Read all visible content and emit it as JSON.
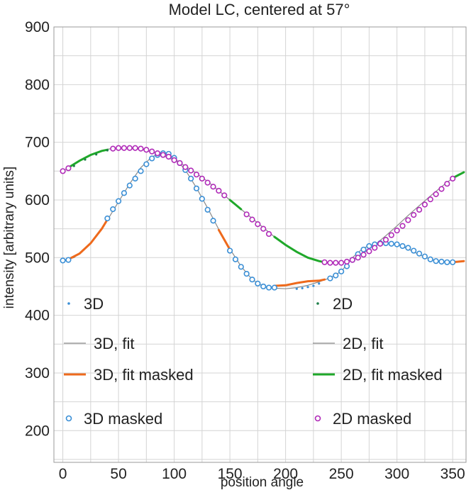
{
  "chart_data": {
    "type": "scatter",
    "title": "Model LC, centered at 57°",
    "xlabel": "position angle",
    "ylabel": "intensity [arbitrary units]",
    "xlim": [
      -8,
      362
    ],
    "ylim": [
      145,
      900
    ],
    "xticks": [
      0,
      50,
      100,
      150,
      200,
      250,
      300,
      350
    ],
    "yticks": [
      200,
      300,
      400,
      500,
      600,
      700,
      800,
      900
    ],
    "grid": true,
    "colors": {
      "3d": "#3a8fd6",
      "3d_fit": "#8a8a8a",
      "3d_fit_masked": "#ee6a1c",
      "2d": "#1f7f4a",
      "2d_fit": "#8a8a8a",
      "2d_fit_masked": "#1fa82a",
      "2d_masked": "#b02ab8"
    },
    "series": [
      {
        "name": "3D",
        "style": "dots",
        "x": [
          210,
          215,
          220,
          225,
          230
        ],
        "y": [
          446,
          447,
          449,
          451,
          455
        ]
      },
      {
        "name": "3D, fit",
        "style": "thin-line",
        "x": [
          0,
          10,
          20,
          30,
          40,
          50,
          60,
          70,
          80,
          90,
          100,
          110,
          120,
          130,
          140,
          150,
          160,
          170,
          180,
          190,
          200,
          210,
          220,
          230,
          240,
          250,
          260,
          270,
          280,
          290,
          300,
          310,
          320,
          330,
          340,
          350,
          360
        ],
        "y": [
          495,
          500,
          515,
          537,
          565,
          597,
          628,
          656,
          675,
          682,
          674,
          652,
          621,
          586,
          549,
          515,
          485,
          462,
          450,
          447,
          446,
          448,
          452,
          458,
          465,
          476,
          500,
          517,
          523,
          525,
          523,
          515,
          505,
          497,
          493,
          493,
          494
        ]
      },
      {
        "name": "3D, fit masked",
        "style": "thick-line",
        "segments": [
          {
            "x": [
              5,
              15,
              25,
              35,
              40
            ],
            "y": [
              497,
              507,
              525,
              550,
              566
            ]
          },
          {
            "x": [
              140,
              145,
              150
            ],
            "y": [
              548,
              531,
              514
            ]
          },
          {
            "x": [
              190,
              200,
              210,
              220,
              230,
              235
            ],
            "y": [
              451,
              452,
              456,
              459,
              460,
              462
            ]
          },
          {
            "x": [
              350,
              355,
              360
            ],
            "y": [
              492,
              493,
              494
            ]
          }
        ]
      },
      {
        "name": "3D masked",
        "style": "open-circles",
        "x": [
          0,
          5,
          40,
          45,
          50,
          55,
          60,
          65,
          70,
          75,
          80,
          85,
          90,
          95,
          100,
          105,
          110,
          115,
          120,
          125,
          130,
          135,
          150,
          155,
          160,
          165,
          170,
          175,
          180,
          185,
          190,
          240,
          245,
          250,
          255,
          260,
          265,
          270,
          275,
          280,
          285,
          290,
          295,
          300,
          305,
          310,
          315,
          320,
          325,
          330,
          335,
          340,
          345,
          350
        ],
        "y": [
          495,
          496,
          568,
          584,
          598,
          612,
          625,
          637,
          650,
          662,
          672,
          678,
          681,
          680,
          673,
          664,
          652,
          637,
          620,
          602,
          583,
          564,
          512,
          497,
          484,
          472,
          462,
          455,
          450,
          448,
          448,
          464,
          469,
          476,
          485,
          496,
          506,
          514,
          520,
          523,
          525,
          525,
          524,
          523,
          520,
          517,
          512,
          507,
          502,
          497,
          494,
          493,
          492,
          492
        ]
      },
      {
        "name": "2D",
        "style": "dots",
        "x": [
          10,
          20,
          30,
          40,
          330
        ],
        "y": [
          659,
          670,
          679,
          686,
          600
        ]
      },
      {
        "name": "2D, fit",
        "style": "thin-line",
        "x": [
          0,
          10,
          20,
          30,
          40,
          50,
          60,
          70,
          80,
          90,
          100,
          110,
          120,
          130,
          140,
          150,
          160,
          170,
          180,
          190,
          200,
          210,
          220,
          230,
          240,
          250,
          260,
          270,
          280,
          290,
          300,
          310,
          320,
          330,
          340,
          350,
          360
        ],
        "y": [
          650,
          662,
          673,
          682,
          688,
          690,
          690,
          688,
          683,
          677,
          669,
          659,
          646,
          632,
          616,
          600,
          584,
          568,
          552,
          536,
          522,
          510,
          500,
          494,
          491,
          491,
          496,
          508,
          522,
          538,
          555,
          573,
          590,
          607,
          623,
          638,
          648
        ]
      },
      {
        "name": "2D, fit masked",
        "style": "thick-line",
        "segments": [
          {
            "x": [
              5,
              15,
              25,
              35,
              40
            ],
            "y": [
              656,
              668,
              678,
              685,
              687
            ]
          },
          {
            "x": [
              150,
              155,
              160
            ],
            "y": [
              600,
              592,
              584
            ]
          },
          {
            "x": [
              190,
              200,
              210,
              220,
              230,
              235
            ],
            "y": [
              536,
              522,
              510,
              500,
              494,
              492
            ]
          },
          {
            "x": [
              350,
              355,
              360
            ],
            "y": [
              638,
              643,
              648
            ]
          }
        ]
      },
      {
        "name": "2D masked",
        "style": "open-circles",
        "x": [
          0,
          5,
          45,
          50,
          55,
          60,
          65,
          70,
          75,
          80,
          85,
          90,
          95,
          100,
          105,
          110,
          115,
          120,
          125,
          130,
          135,
          140,
          145,
          165,
          170,
          175,
          180,
          185,
          235,
          240,
          245,
          250,
          255,
          260,
          265,
          270,
          275,
          280,
          285,
          290,
          295,
          300,
          305,
          310,
          315,
          320,
          325,
          330,
          335,
          340,
          345,
          350
        ],
        "y": [
          650,
          655,
          689,
          690,
          690,
          690,
          690,
          689,
          687,
          684,
          681,
          678,
          675,
          669,
          664,
          657,
          651,
          644,
          637,
          630,
          623,
          616,
          608,
          575,
          566,
          558,
          550,
          541,
          492,
          491,
          491,
          491,
          493,
          496,
          500,
          505,
          511,
          517,
          524,
          531,
          539,
          547,
          555,
          565,
          574,
          583,
          592,
          601,
          610,
          619,
          628,
          637
        ]
      }
    ],
    "legend": [
      {
        "label": "3D",
        "marker": "dot",
        "series": 0
      },
      {
        "label": "2D",
        "marker": "dot",
        "series": 4
      },
      {
        "label": "3D, fit",
        "marker": "thin-line",
        "series": 1
      },
      {
        "label": "2D, fit",
        "marker": "thin-line",
        "series": 5
      },
      {
        "label": "3D, fit masked",
        "marker": "thick-line",
        "series": 2
      },
      {
        "label": "2D, fit masked",
        "marker": "thick-line",
        "series": 6
      },
      {
        "label": "3D masked",
        "marker": "open-circle",
        "series": 3
      },
      {
        "label": "2D masked",
        "marker": "open-circle",
        "series": 7
      }
    ],
    "legend_placement": "lower, two columns"
  }
}
